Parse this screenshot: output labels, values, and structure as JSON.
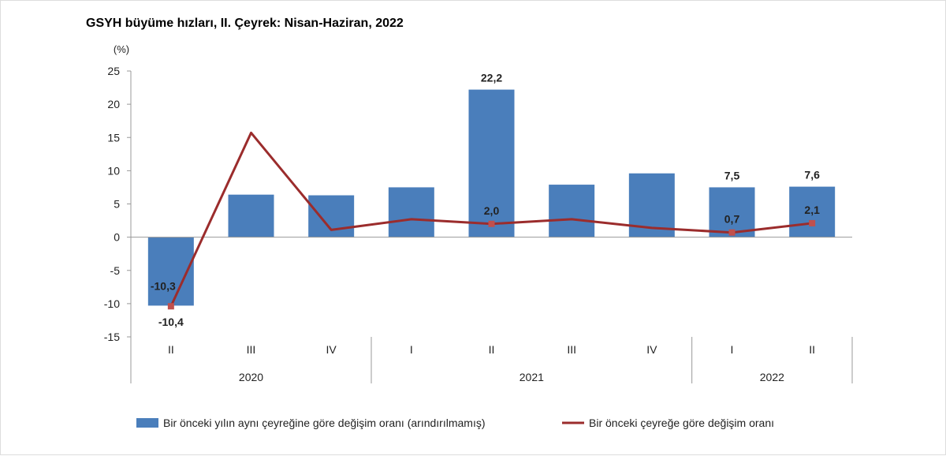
{
  "chart_data": {
    "type": "bar+line",
    "title": "GSYH büyüme hızları, II. Çeyrek: Nisan-Haziran, 2022",
    "ylabel": "(%)",
    "ylim": [
      -15,
      25
    ],
    "yticks": [
      25,
      20,
      15,
      10,
      5,
      0,
      -5,
      -10,
      -15
    ],
    "categories": [
      "II",
      "III",
      "IV",
      "I",
      "II",
      "III",
      "IV",
      "I",
      "II"
    ],
    "years": [
      {
        "label": "2020",
        "span": 3
      },
      {
        "label": "2021",
        "span": 4
      },
      {
        "label": "2022",
        "span": 2
      }
    ],
    "grid": false,
    "legend": "bottom",
    "series": [
      {
        "name": "Bir önceki yılın aynı çeyreğine göre değişim oranı (arındırılmamış)",
        "type": "bar",
        "color": "#4a7ebb",
        "values": [
          -10.3,
          6.4,
          6.3,
          7.5,
          22.2,
          7.9,
          9.6,
          7.5,
          7.6
        ],
        "labels": [
          "-10,3",
          null,
          null,
          null,
          "22,2",
          null,
          null,
          "7,5",
          "7,6"
        ]
      },
      {
        "name": "Bir önceki çeyreğe göre değişim oranı",
        "type": "line",
        "color": "#9b2c2c",
        "values": [
          -10.4,
          15.7,
          1.1,
          2.7,
          2.0,
          2.7,
          1.4,
          0.7,
          2.1
        ],
        "labels": [
          "-10,4",
          null,
          null,
          null,
          "2,0",
          null,
          null,
          "0,7",
          "2,1"
        ]
      }
    ]
  }
}
